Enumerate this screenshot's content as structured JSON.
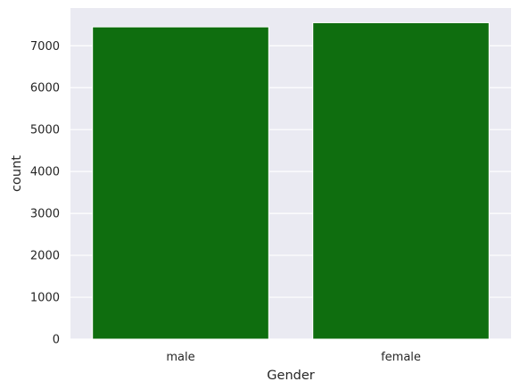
{
  "chart_data": {
    "type": "bar",
    "categories": [
      "male",
      "female"
    ],
    "values": [
      7450,
      7550
    ],
    "xlabel": "Gender",
    "ylabel": "count",
    "ylim": [
      0,
      7900
    ],
    "yticks": [
      0,
      1000,
      2000,
      3000,
      4000,
      5000,
      6000,
      7000
    ],
    "grid": true,
    "colors": {
      "bar": "#0f6e0f",
      "plot_background": "#eaeaf2",
      "gridline": "#ffffff",
      "text": "#262626"
    }
  }
}
